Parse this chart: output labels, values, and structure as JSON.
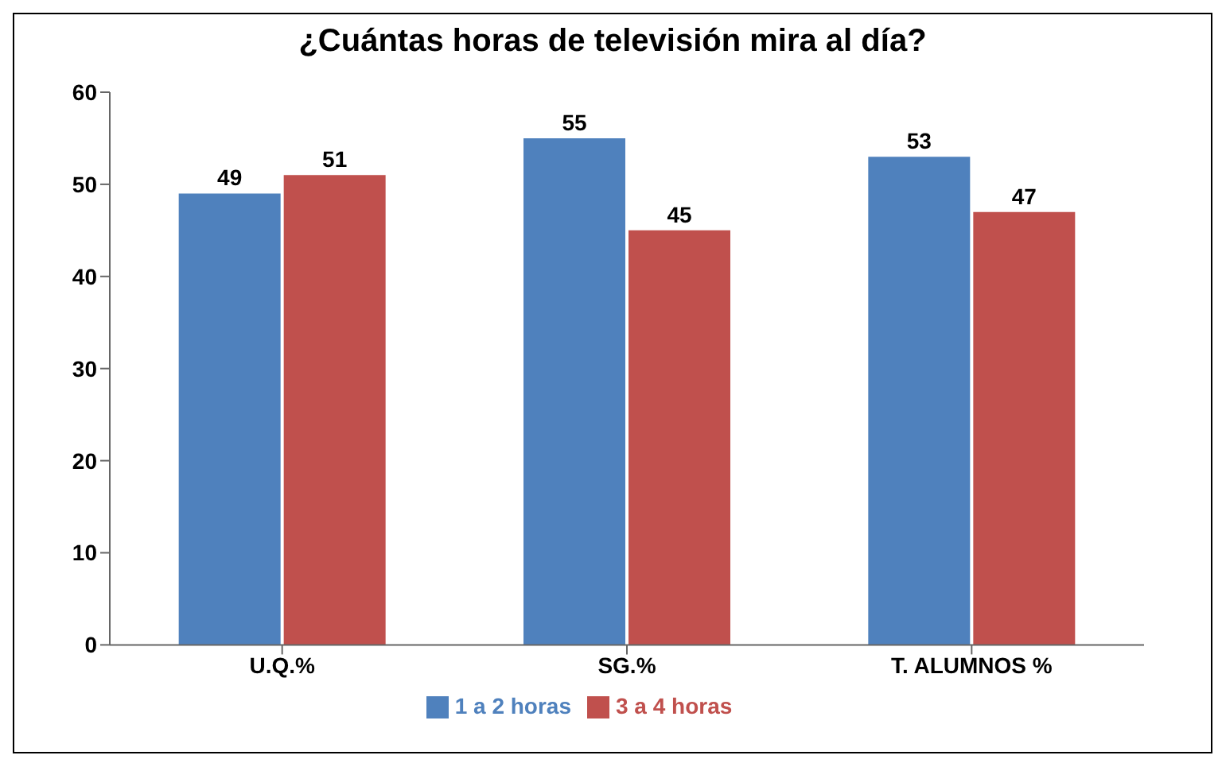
{
  "chart_data": {
    "type": "bar",
    "title": "¿Cuántas horas de televisión mira al día?",
    "categories": [
      "U.Q.%",
      "SG.%",
      "T. ALUMNOS %"
    ],
    "series": [
      {
        "name": "1 a 2 horas",
        "color": "#4f81bd",
        "values": [
          49,
          55,
          53
        ]
      },
      {
        "name": "3 a 4 horas",
        "color": "#c0504d",
        "values": [
          51,
          45,
          47
        ]
      }
    ],
    "ylim": [
      0,
      60
    ],
    "yticks": [
      0,
      10,
      20,
      30,
      40,
      50,
      60
    ],
    "grid": false,
    "legend": "bottom",
    "data_labels": true
  }
}
